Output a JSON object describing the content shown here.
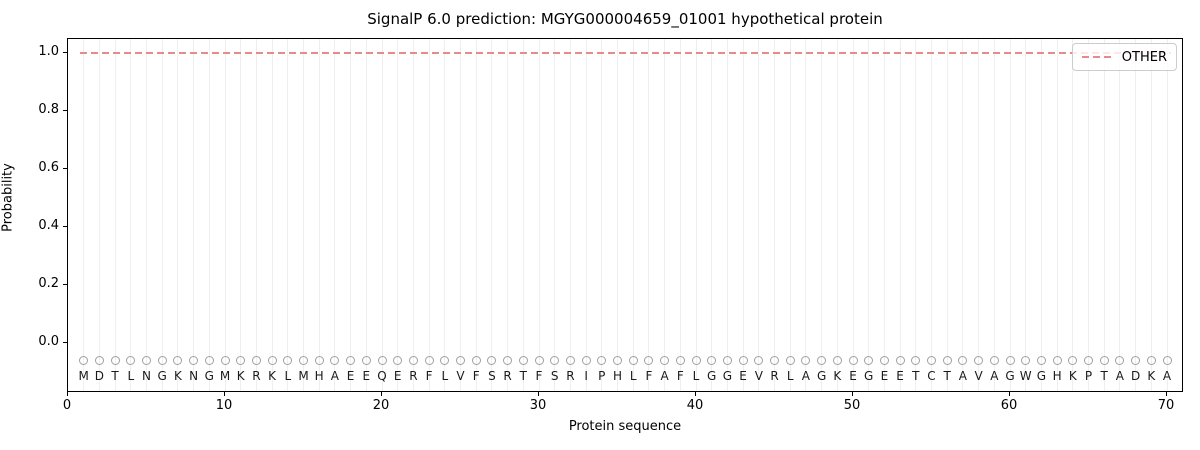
{
  "chart_data": {
    "type": "line",
    "title": "SignalP 6.0 prediction: MGYG000004659_01001 hypothetical protein",
    "xlabel": "Protein sequence",
    "ylabel": "Probability",
    "x_ticks": [
      0,
      10,
      20,
      30,
      40,
      50,
      60,
      70
    ],
    "y_ticks": [
      0.0,
      0.2,
      0.4,
      0.6,
      0.8,
      1.0
    ],
    "xlim": [
      0,
      71
    ],
    "ylim": [
      -0.175,
      1.05
    ],
    "grid": "vertical gridline at every residue position",
    "legend_position": "upper right",
    "legend": {
      "entries": [
        {
          "label": "OTHER",
          "color": "#e98a8a",
          "style": "dashed"
        }
      ]
    },
    "series": [
      {
        "name": "OTHER",
        "color": "#e98a8a",
        "linestyle": "dashed",
        "x_range": [
          1,
          70
        ],
        "values": [
          1.0,
          1.0,
          1.0,
          1.0,
          1.0,
          1.0,
          1.0,
          1.0,
          1.0,
          1.0,
          1.0,
          1.0,
          1.0,
          1.0,
          1.0,
          1.0,
          1.0,
          1.0,
          1.0,
          1.0,
          1.0,
          1.0,
          1.0,
          1.0,
          1.0,
          1.0,
          1.0,
          1.0,
          1.0,
          1.0,
          1.0,
          1.0,
          1.0,
          1.0,
          1.0,
          1.0,
          1.0,
          1.0,
          1.0,
          1.0,
          1.0,
          1.0,
          1.0,
          1.0,
          1.0,
          1.0,
          1.0,
          1.0,
          1.0,
          1.0,
          1.0,
          1.0,
          1.0,
          1.0,
          1.0,
          1.0,
          1.0,
          1.0,
          1.0,
          1.0,
          1.0,
          1.0,
          1.0,
          1.0,
          1.0,
          1.0,
          1.0,
          1.0,
          1.0,
          1.0
        ]
      }
    ],
    "sequence": "MDTLNGKNGMKRKLMHAEEQERFLVFSRTFSRIPHLFAFLGGEVRLAGKEGEETCTAVAGWGHKPTADKA",
    "residue_markers": {
      "shape": "open-circle",
      "y_value": -0.06,
      "color": "#a0a0a0"
    },
    "colors": {
      "other_line": "#e98a8a",
      "gridline": "#efefef",
      "marker_outline": "#a0a0a0",
      "text": "#000000"
    }
  }
}
